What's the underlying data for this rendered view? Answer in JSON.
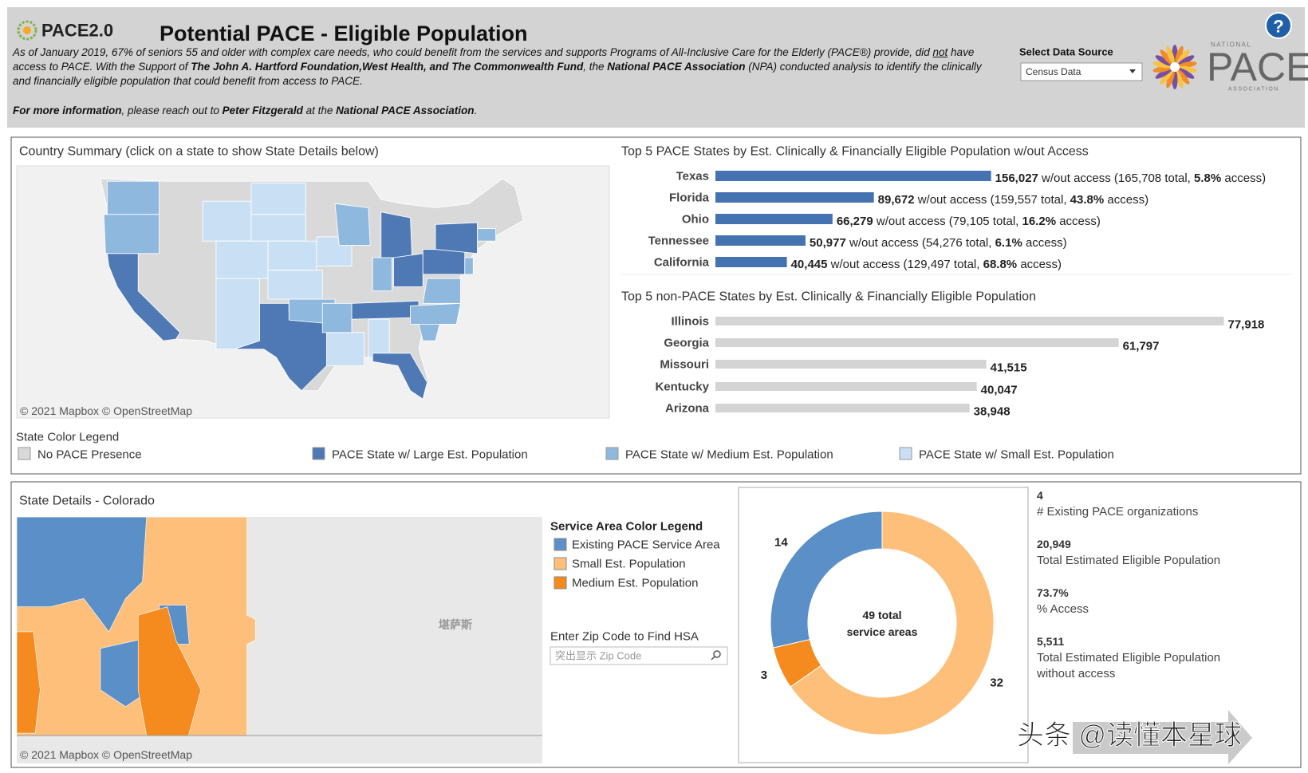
{
  "header": {
    "logo": "PACE2.0",
    "title": "Potential PACE - Eligible Population",
    "intro": [
      "As of January 2019, 67% of seniors 55 and older with complex care needs, who could benefit from the services and supports Programs of All-Inclusive Care for the Elderly (PACE®) provide, did ",
      "not",
      " have access to PACE. With the Support of ",
      "The John A. Hartford Foundation,West Health, and The Commonwealth Fund",
      ", the ",
      "National PACE Association",
      " (NPA) conducted analysis to identify the clinically and financially eligible population that could benefit from access to PACE."
    ],
    "more_info": [
      "For more information",
      ", please reach out to ",
      "Peter Fitzgerald",
      " at the ",
      "National PACE Association",
      "."
    ],
    "select_label": "Select Data Source",
    "select_value": "Census Data",
    "brand_top": "NATIONAL",
    "brand": "PACE",
    "brand_bottom": "ASSOCIATION",
    "help": "?"
  },
  "country_summary": {
    "title": "Country Summary (click on a state to show State Details below)",
    "map_credit": "© 2021 Mapbox © OpenStreetMap",
    "legend_title": "State Color Legend",
    "legend": [
      {
        "name": "No PACE Presence",
        "color": "#d9d9d9"
      },
      {
        "name": "PACE State w/ Large Est. Population",
        "color": "#4e79b4"
      },
      {
        "name": "PACE State w/ Medium Est. Population",
        "color": "#8fb8de"
      },
      {
        "name": "PACE State w/ Small Est. Population",
        "color": "#c9e0f4"
      }
    ]
  },
  "top_pace": {
    "title": "Top 5 PACE States by Est. Clinically & Financially Eligible Population w/out Access",
    "color": "#4572b0",
    "xlim": [
      0,
      325000
    ],
    "bars": [
      {
        "state": "Texas",
        "value": 156027,
        "value_label": "156,027",
        "detail": " w/out access (165,708 total, ",
        "access": "5.8%",
        "suffix": " access)"
      },
      {
        "state": "Florida",
        "value": 89672,
        "value_label": "89,672",
        "detail": " w/out access (159,557 total, ",
        "access": "43.8%",
        "suffix": " access)"
      },
      {
        "state": "Ohio",
        "value": 66279,
        "value_label": "66,279",
        "detail": " w/out access (79,105 total, ",
        "access": "16.2%",
        "suffix": " access)"
      },
      {
        "state": "Tennessee",
        "value": 50977,
        "value_label": "50,977",
        "detail": " w/out access (54,276 total, ",
        "access": "6.1%",
        "suffix": " access)"
      },
      {
        "state": "California",
        "value": 40445,
        "value_label": "40,445",
        "detail": " w/out access (129,497 total, ",
        "access": "68.8%",
        "suffix": " access)"
      }
    ]
  },
  "top_non_pace": {
    "title": "Top 5 non-PACE States by Est. Clinically & Financially Eligible Population",
    "color": "#d4d4d4",
    "xlim": [
      0,
      88000
    ],
    "bars": [
      {
        "state": "Illinois",
        "value": 77918,
        "value_label": "77,918"
      },
      {
        "state": "Georgia",
        "value": 61797,
        "value_label": "61,797"
      },
      {
        "state": "Missouri",
        "value": 41515,
        "value_label": "41,515"
      },
      {
        "state": "Kentucky",
        "value": 40047,
        "value_label": "40,047"
      },
      {
        "state": "Arizona",
        "value": 38948,
        "value_label": "38,948"
      }
    ]
  },
  "state_details": {
    "title": "State Details - Colorado",
    "map_credit": "© 2021 Mapbox © OpenStreetMap",
    "map_label": "堪萨斯",
    "legend_title": "Service Area Color Legend",
    "legend": [
      {
        "name": "Existing PACE Service Area",
        "color": "#5b8fc7"
      },
      {
        "name": "Small Est. Population",
        "color": "#fdbf7a"
      },
      {
        "name": "Medium Est. Population",
        "color": "#f58a1f"
      }
    ],
    "zip_label": "Enter Zip Code to Find HSA",
    "zip_placeholder": "突出显示 Zip Code",
    "donut": {
      "center": [
        "49 total",
        "service areas"
      ],
      "segments": [
        {
          "value": 14,
          "color": "#5b8fc7"
        },
        {
          "value": 3,
          "color": "#f58a1f"
        },
        {
          "value": 32,
          "color": "#fdbf7a"
        }
      ]
    },
    "stats": [
      {
        "value": "4",
        "label": "# Existing PACE organizations"
      },
      {
        "value": "20,949",
        "label": "Total Estimated Eligible Population"
      },
      {
        "value": "73.7%",
        "label": "% Access"
      },
      {
        "value": "5,511",
        "label": "Total Estimated Eligible Population without access"
      }
    ]
  },
  "watermark": "头条 @读懂本星球"
}
